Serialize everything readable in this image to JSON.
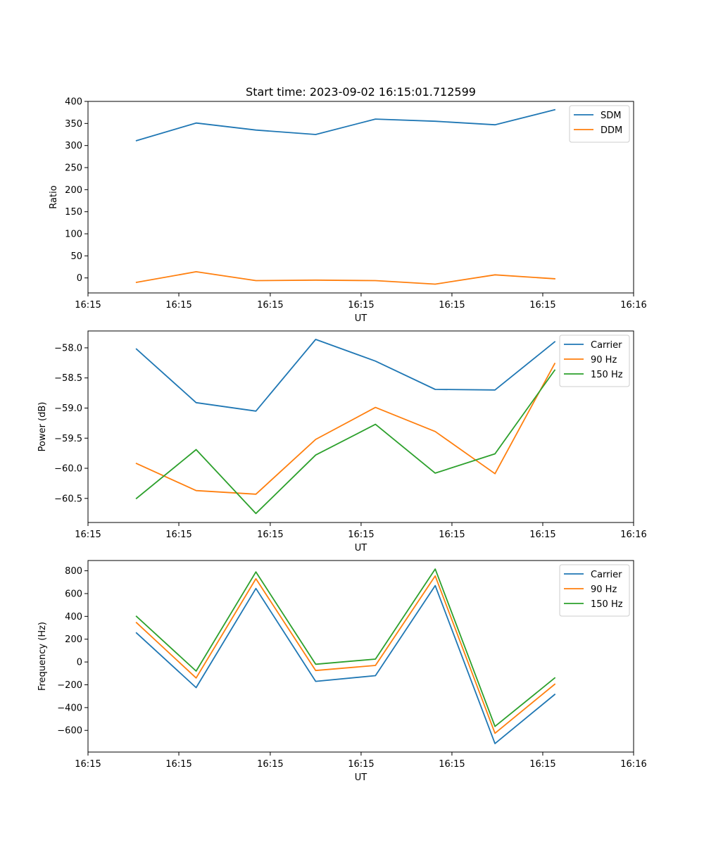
{
  "figure": {
    "title": "Start time: 2023-09-02 16:15:01.712599"
  },
  "chart_data": [
    {
      "type": "line",
      "title": "Start time: 2023-09-02 16:15:01.712599",
      "xlabel": "UT",
      "ylabel": "Ratio",
      "x": [
        1,
        2,
        3,
        4,
        5,
        6,
        7,
        8
      ],
      "xlim": [
        0.19,
        9.32
      ],
      "x_ticks": [
        0.19,
        1.71,
        3.24,
        4.76,
        6.28,
        7.8,
        9.32
      ],
      "x_tick_labels": [
        "16:15",
        "16:15",
        "16:15",
        "16:15",
        "16:15",
        "16:15",
        "16:16"
      ],
      "ylim": [
        -34,
        400
      ],
      "y_ticks": [
        0,
        50,
        100,
        150,
        200,
        250,
        300,
        350,
        400
      ],
      "y_tick_labels": [
        "0",
        "50",
        "100",
        "150",
        "200",
        "250",
        "300",
        "350",
        "400"
      ],
      "legend": "top-right",
      "series": [
        {
          "name": "SDM",
          "color": "#1f77b4",
          "values": [
            311,
            351,
            335,
            325,
            360,
            355,
            347,
            381
          ]
        },
        {
          "name": "DDM",
          "color": "#ff7f0e",
          "values": [
            -10,
            14,
            -6,
            -5,
            -6,
            -14,
            7,
            -2
          ]
        }
      ]
    },
    {
      "type": "line",
      "title": "",
      "xlabel": "UT",
      "ylabel": "Power (dB)",
      "x": [
        1,
        2,
        3,
        4,
        5,
        6,
        7,
        8
      ],
      "xlim": [
        0.19,
        9.32
      ],
      "x_ticks": [
        0.19,
        1.71,
        3.24,
        4.76,
        6.28,
        7.8,
        9.32
      ],
      "x_tick_labels": [
        "16:15",
        "16:15",
        "16:15",
        "16:15",
        "16:15",
        "16:15",
        "16:16"
      ],
      "ylim": [
        -60.9,
        -57.72
      ],
      "y_ticks": [
        -60.5,
        -60.0,
        -59.5,
        -59.0,
        -58.5,
        -58.0
      ],
      "y_tick_labels": [
        "−60.5",
        "−60.0",
        "−59.5",
        "−59.0",
        "−58.5",
        "−58.0"
      ],
      "legend": "top-right",
      "series": [
        {
          "name": "Carrier",
          "color": "#1f77b4",
          "values": [
            -58.02,
            -58.91,
            -59.05,
            -57.86,
            -58.22,
            -58.69,
            -58.7,
            -57.9
          ]
        },
        {
          "name": "90 Hz",
          "color": "#ff7f0e",
          "values": [
            -59.92,
            -60.37,
            -60.43,
            -59.52,
            -58.99,
            -59.39,
            -60.09,
            -58.26
          ]
        },
        {
          "name": "150 Hz",
          "color": "#2ca02c",
          "values": [
            -60.5,
            -59.69,
            -60.75,
            -59.78,
            -59.27,
            -60.08,
            -59.76,
            -58.37
          ]
        }
      ]
    },
    {
      "type": "line",
      "title": "",
      "xlabel": "UT",
      "ylabel": "Frequency (Hz)",
      "x": [
        1,
        2,
        3,
        4,
        5,
        6,
        7,
        8
      ],
      "xlim": [
        0.19,
        9.32
      ],
      "x_ticks": [
        0.19,
        1.71,
        3.24,
        4.76,
        6.28,
        7.8,
        9.32
      ],
      "x_tick_labels": [
        "16:15",
        "16:15",
        "16:15",
        "16:15",
        "16:15",
        "16:15",
        "16:16"
      ],
      "ylim": [
        -790,
        890
      ],
      "y_ticks": [
        -600,
        -400,
        -200,
        0,
        200,
        400,
        600,
        800
      ],
      "y_tick_labels": [
        "−600",
        "−400",
        "−200",
        "0",
        "200",
        "400",
        "600",
        "800"
      ],
      "legend": "top-right",
      "series": [
        {
          "name": "Carrier",
          "color": "#1f77b4",
          "values": [
            255,
            -225,
            645,
            -170,
            -120,
            670,
            -715,
            -285
          ]
        },
        {
          "name": "90 Hz",
          "color": "#ff7f0e",
          "values": [
            345,
            -140,
            730,
            -75,
            -30,
            755,
            -625,
            -195
          ]
        },
        {
          "name": "150 Hz",
          "color": "#2ca02c",
          "values": [
            400,
            -80,
            790,
            -20,
            25,
            815,
            -565,
            -140
          ]
        }
      ]
    }
  ]
}
